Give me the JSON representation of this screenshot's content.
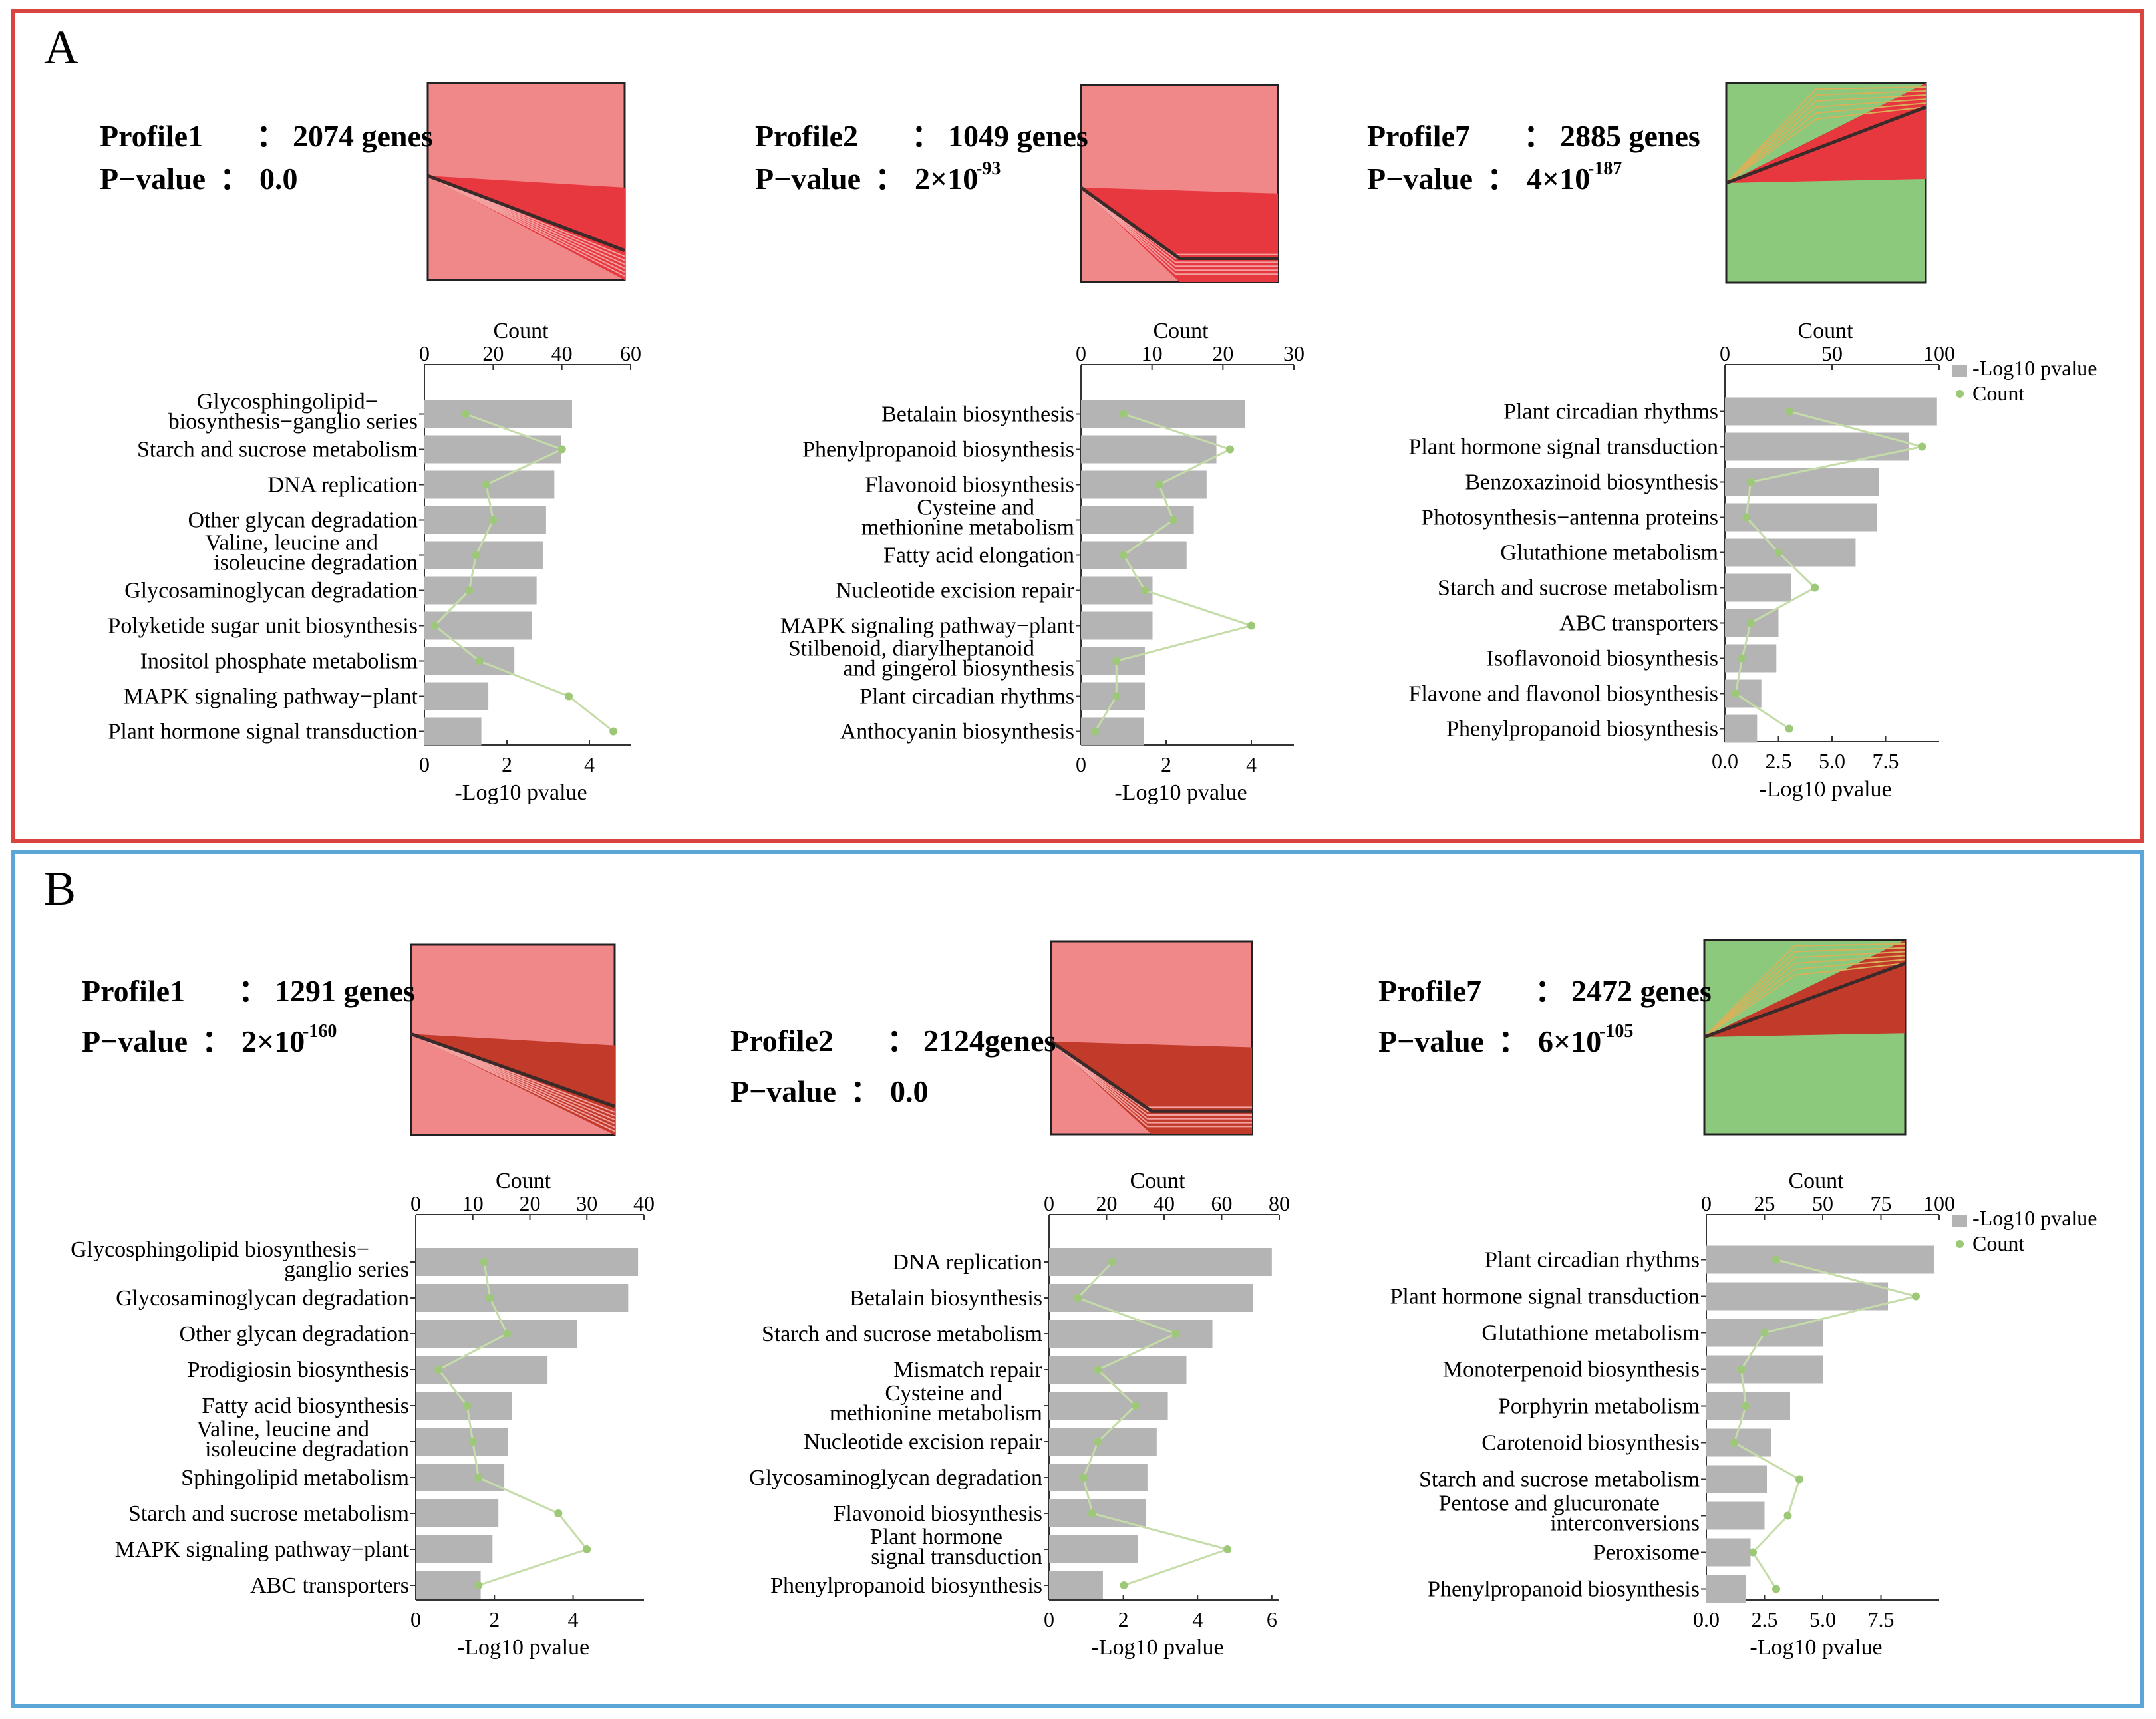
{
  "colors": {
    "panel_a_border": "#d9443f",
    "panel_b_border": "#5ba6d6",
    "bar": "#b4b4b4",
    "count_line": "#c5dca8",
    "count_point": "#9dc878",
    "profile_bg_red": "#f0888a",
    "profile_fill_red": "#e8383f",
    "profile_fill_dark": "#c23a2a",
    "profile_bg_green": "#8cc97d",
    "profile_mean_line": "#3a2a2a"
  },
  "legend": {
    "bar_label": "-Log10 pvalue",
    "count_label": "Count"
  },
  "panels": [
    {
      "letter": "A",
      "charts": [
        {
          "profile": {
            "name": "Profile1",
            "genes": "2074 genes",
            "pvalue_label": "P−value",
            "pvalue_base": "0.0",
            "pvalue_exp": "",
            "color": "red",
            "trend": "down",
            "show_profile_label": true
          },
          "chart_data": {
            "type": "bar",
            "count_axis_title": "Count",
            "pvalue_axis_title": "-Log10 pvalue",
            "count_max": 60,
            "count_ticks": [
              "0",
              "20",
              "40",
              "60"
            ],
            "pvalue_max": 5,
            "pvalue_ticks": [
              "0",
              "2",
              "4"
            ],
            "categories": [
              [
                "Glycosphingolipid−",
                "biosynthesis−ganglio series"
              ],
              [
                "Starch and sucrose metabolism"
              ],
              [
                "DNA replication"
              ],
              [
                "Other glycan degradation"
              ],
              [
                "Valine, leucine and",
                "isoleucine degradation"
              ],
              [
                "Glycosaminoglycan degradation"
              ],
              [
                "Polyketide sugar unit biosynthesis"
              ],
              [
                "Inositol phosphate metabolism"
              ],
              [
                "MAPK signaling pathway−plant"
              ],
              [
                "Plant hormone signal transduction"
              ]
            ],
            "neg_log10_pvalue": [
              3.58,
              3.32,
              3.15,
              2.95,
              2.87,
              2.72,
              2.6,
              2.18,
              1.55,
              1.38
            ],
            "count": [
              12,
              40,
              18,
              20,
              15,
              13,
              3,
              16,
              42,
              55
            ],
            "show_legend": false
          }
        },
        {
          "profile": {
            "name": "Profile2",
            "genes": "1049 genes",
            "pvalue_label": "P−value",
            "pvalue_base": "2×10",
            "pvalue_exp": "-93",
            "color": "red",
            "trend": "down-flat",
            "show_profile_label": true
          },
          "chart_data": {
            "type": "bar",
            "count_axis_title": "Count",
            "pvalue_axis_title": "-Log10 pvalue",
            "count_max": 30,
            "count_ticks": [
              "0",
              "10",
              "20",
              "30"
            ],
            "pvalue_max": 5,
            "pvalue_ticks": [
              "0",
              "2",
              "4"
            ],
            "categories": [
              [
                "Betalain biosynthesis"
              ],
              [
                "Phenylpropanoid biosynthesis"
              ],
              [
                "Flavonoid biosynthesis"
              ],
              [
                "Cysteine and",
                "methionine metabolism"
              ],
              [
                "Fatty acid elongation"
              ],
              [
                "Nucleotide excision repair"
              ],
              [
                "MAPK signaling pathway−plant"
              ],
              [
                "Stilbenoid, diarylheptanoid",
                "and gingerol biosynthesis"
              ],
              [
                "Plant circadian rhythms"
              ],
              [
                "Anthocyanin biosynthesis"
              ]
            ],
            "neg_log10_pvalue": [
              3.85,
              3.18,
              2.95,
              2.65,
              2.48,
              1.68,
              1.68,
              1.5,
              1.5,
              1.48
            ],
            "count": [
              6,
              21,
              11,
              13,
              6,
              9,
              24,
              5,
              5,
              2
            ],
            "show_legend": false
          }
        },
        {
          "profile": {
            "name": "Profile7",
            "genes": "2885 genes",
            "pvalue_label": "P−value",
            "pvalue_base": "4×10",
            "pvalue_exp": "-187",
            "color": "green",
            "trend": "up",
            "show_profile_label": true
          },
          "chart_data": {
            "type": "bar",
            "count_axis_title": "Count",
            "pvalue_axis_title": "-Log10 pvalue",
            "count_max": 100,
            "count_ticks": [
              "0",
              "50",
              "100"
            ],
            "pvalue_max": 10,
            "pvalue_ticks": [
              "0.0",
              "2.5",
              "5.0",
              "7.5"
            ],
            "categories": [
              [
                "Plant circadian rhythms"
              ],
              [
                "Plant hormone signal transduction"
              ],
              [
                "Benzoxazinoid biosynthesis"
              ],
              [
                "Photosynthesis−antenna proteins"
              ],
              [
                "Glutathione metabolism"
              ],
              [
                "Starch and sucrose metabolism"
              ],
              [
                "ABC transporters"
              ],
              [
                "Isoflavonoid biosynthesis"
              ],
              [
                "Flavone and flavonol biosynthesis"
              ],
              [
                "Phenylpropanoid biosynthesis"
              ]
            ],
            "neg_log10_pvalue": [
              9.9,
              8.6,
              7.2,
              7.1,
              6.1,
              3.1,
              2.5,
              2.4,
              1.7,
              1.5
            ],
            "count": [
              30,
              92,
              12,
              10,
              25,
              42,
              12,
              8,
              5,
              30
            ],
            "show_legend": true
          }
        }
      ]
    },
    {
      "letter": "B",
      "charts": [
        {
          "profile": {
            "name": "Profile1",
            "genes": "1291 genes",
            "pvalue_label": "P−value",
            "pvalue_base": "2×10",
            "pvalue_exp": "-160",
            "color": "red-dark",
            "trend": "down",
            "show_profile_label": true
          },
          "chart_data": {
            "type": "bar",
            "count_axis_title": "Count",
            "pvalue_axis_title": "-Log10 pvalue",
            "count_max": 40,
            "count_ticks": [
              "0",
              "10",
              "20",
              "30",
              "40"
            ],
            "pvalue_max": 5.8,
            "pvalue_ticks": [
              "0",
              "2",
              "4"
            ],
            "categories": [
              [
                "Glycosphingolipid biosynthesis−",
                "ganglio series"
              ],
              [
                "Glycosaminoglycan degradation"
              ],
              [
                "Other glycan degradation"
              ],
              [
                "Prodigiosin biosynthesis"
              ],
              [
                "Fatty acid biosynthesis"
              ],
              [
                "Valine, leucine and",
                "isoleucine degradation"
              ],
              [
                "Sphingolipid metabolism"
              ],
              [
                "Starch and sucrose metabolism"
              ],
              [
                "MAPK signaling pathway−plant"
              ],
              [
                "ABC transporters"
              ]
            ],
            "neg_log10_pvalue": [
              5.65,
              5.4,
              4.1,
              3.35,
              2.45,
              2.35,
              2.25,
              2.1,
              1.95,
              1.65
            ],
            "count": [
              12,
              13,
              16,
              4,
              9,
              10,
              11,
              25,
              30,
              11
            ],
            "show_legend": false
          }
        },
        {
          "profile": {
            "name": "Profile2",
            "genes": "2124genes",
            "pvalue_label": "P−value",
            "pvalue_base": "0.0",
            "pvalue_exp": "",
            "color": "red-dark",
            "trend": "down-flat",
            "show_profile_label": true
          },
          "chart_data": {
            "type": "bar",
            "count_axis_title": "Count",
            "pvalue_axis_title": "-Log10 pvalue",
            "count_max": 80,
            "count_ticks": [
              "0",
              "20",
              "40",
              "60",
              "80"
            ],
            "pvalue_max": 6.2,
            "pvalue_ticks": [
              "0",
              "2",
              "4",
              "6"
            ],
            "categories": [
              [
                "DNA replication"
              ],
              [
                "Betalain biosynthesis"
              ],
              [
                "Starch and sucrose metabolism"
              ],
              [
                "Mismatch repair"
              ],
              [
                "Cysteine and",
                "methionine metabolism"
              ],
              [
                "Nucleotide excision repair"
              ],
              [
                "Glycosaminoglycan degradation"
              ],
              [
                "Flavonoid biosynthesis"
              ],
              [
                "Plant hormone",
                "signal transduction"
              ],
              [
                "Phenylpropanoid biosynthesis"
              ]
            ],
            "neg_log10_pvalue": [
              6.0,
              5.5,
              4.4,
              3.7,
              3.2,
              2.9,
              2.65,
              2.6,
              2.4,
              1.45
            ],
            "count": [
              22,
              10,
              44,
              17,
              30,
              17,
              12,
              15,
              62,
              26
            ],
            "show_legend": false
          }
        },
        {
          "profile": {
            "name": "Profile7",
            "genes": "2472 genes",
            "pvalue_label": "P−value",
            "pvalue_base": "6×10",
            "pvalue_exp": "-105",
            "color": "green-dark",
            "trend": "up",
            "show_profile_label": true
          },
          "chart_data": {
            "type": "bar",
            "count_axis_title": "Count",
            "pvalue_axis_title": "-Log10 pvalue",
            "count_max": 100,
            "count_ticks": [
              "0",
              "25",
              "50",
              "75",
              "100"
            ],
            "pvalue_max": 10,
            "pvalue_ticks": [
              "0.0",
              "2.5",
              "5.0",
              "7.5"
            ],
            "categories": [
              [
                "Plant circadian rhythms"
              ],
              [
                "Plant hormone signal transduction"
              ],
              [
                "Glutathione metabolism"
              ],
              [
                "Monoterpenoid biosynthesis"
              ],
              [
                "Porphyrin metabolism"
              ],
              [
                "Carotenoid biosynthesis"
              ],
              [
                "Starch and sucrose metabolism"
              ],
              [
                "Pentose and glucuronate",
                "interconversions"
              ],
              [
                "Peroxisome"
              ],
              [
                "Phenylpropanoid biosynthesis"
              ]
            ],
            "neg_log10_pvalue": [
              9.8,
              7.8,
              5.0,
              5.0,
              3.6,
              2.8,
              2.6,
              2.5,
              1.9,
              1.7
            ],
            "count": [
              30,
              90,
              25,
              15,
              17,
              12,
              40,
              35,
              20,
              30
            ],
            "show_legend": true
          }
        }
      ]
    }
  ]
}
